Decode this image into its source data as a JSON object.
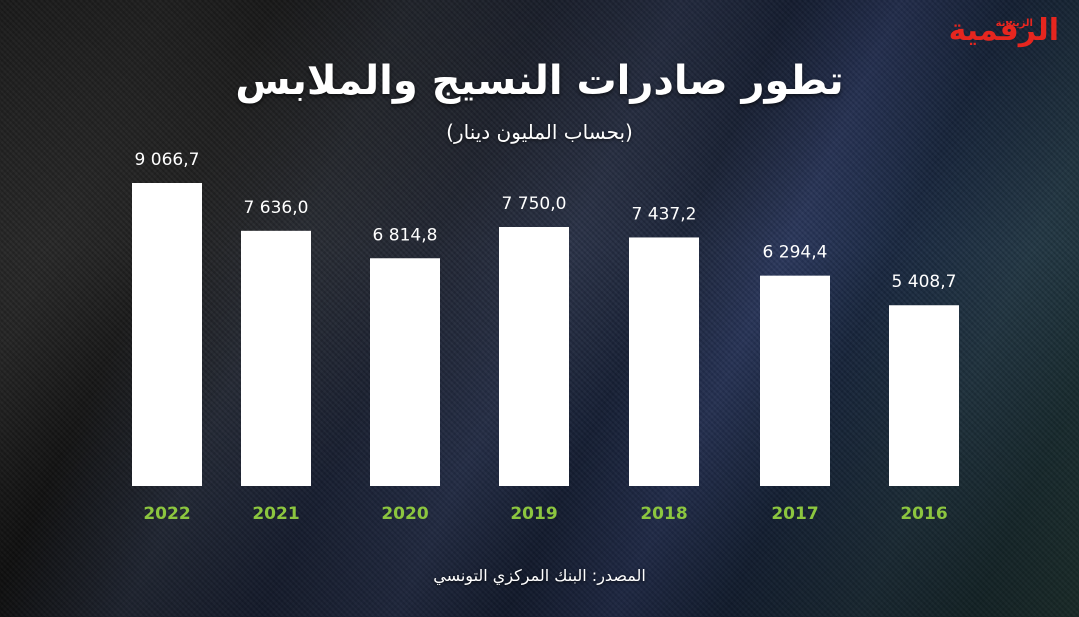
{
  "logo": {
    "main_a": "الرقمية",
    "main_b": "",
    "small": "الزيتونة"
  },
  "colors": {
    "bar": "#ffffff",
    "value_label": "#ffffff",
    "year_label": "#8cc63f",
    "logo_red": "#e6261f",
    "logo_green": "#8cc63f"
  },
  "chart_data": {
    "type": "bar",
    "title": "تطور صادرات النسيج والملابس",
    "subtitle": "(بحساب المليون دينار)",
    "categories": [
      "2022",
      "2021",
      "2020",
      "2019",
      "2018",
      "2017",
      "2016"
    ],
    "values": [
      9066.7,
      7636.0,
      6814.8,
      7750.0,
      7437.2,
      6294.4,
      5408.7
    ],
    "value_labels": [
      "9 066,7",
      "7 636,0",
      "6 814,8",
      "7 750,0",
      "7 437,2",
      "6 294,4",
      "5 408,7"
    ],
    "ylim": [
      0,
      9066.7
    ],
    "grid": false,
    "legend": "none"
  },
  "source": "المصدر: البنك المركزي التونسي"
}
